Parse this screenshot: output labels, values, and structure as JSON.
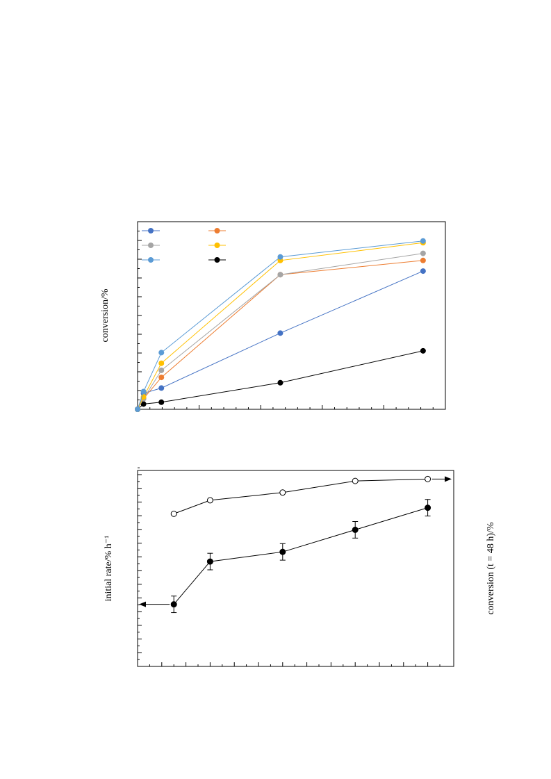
{
  "chart_data": [
    {
      "type": "line",
      "title": "",
      "ylabel": "conversion/%",
      "xlim": [
        0,
        25
      ],
      "ylim": [
        0,
        100
      ],
      "x": [
        0,
        0.5,
        2,
        12,
        24
      ],
      "grid": false,
      "legend": "top-left, 2 columns, entries unlabeled",
      "series": [
        {
          "color": "#4472C4",
          "marker": "filled-circle",
          "values": [
            0,
            9,
            12,
            43,
            78
          ]
        },
        {
          "color": "#ED7D31",
          "marker": "filled-circle",
          "values": [
            0,
            6,
            18,
            76,
            84
          ]
        },
        {
          "color": "#A5A5A5",
          "marker": "filled-circle",
          "values": [
            0,
            6,
            22,
            76,
            88
          ]
        },
        {
          "color": "#FFC000",
          "marker": "filled-circle",
          "values": [
            0,
            7,
            26,
            84,
            94
          ]
        },
        {
          "color": "#5B9BD5",
          "marker": "filled-circle",
          "values": [
            0,
            10,
            32,
            86,
            95
          ]
        },
        {
          "color": "#000000",
          "marker": "filled-circle",
          "values": [
            0,
            3,
            4,
            15,
            33
          ]
        }
      ]
    },
    {
      "type": "line",
      "title": "",
      "ylabel": "initial rate/% h⁻¹",
      "y2label": "conversion (t = 48 h)/%",
      "xlim": [
        0,
        25
      ],
      "x": [
        3,
        6,
        12,
        18,
        24
      ],
      "grid": false,
      "series": [
        {
          "axis": "left",
          "color": "#000000",
          "marker": "filled-circle",
          "arrow": "left",
          "ylim": [
            0,
            14
          ],
          "values": [
            4.5,
            7.6,
            8.3,
            9.9,
            11.5
          ],
          "error": [
            0.6,
            0.6,
            0.6,
            0.6,
            0.6
          ]
        },
        {
          "axis": "right",
          "color": "#000000",
          "marker": "open-circle",
          "arrow": "right",
          "ylim": [
            0,
            100
          ],
          "values": [
            79,
            86,
            90,
            96,
            97
          ]
        }
      ]
    }
  ]
}
